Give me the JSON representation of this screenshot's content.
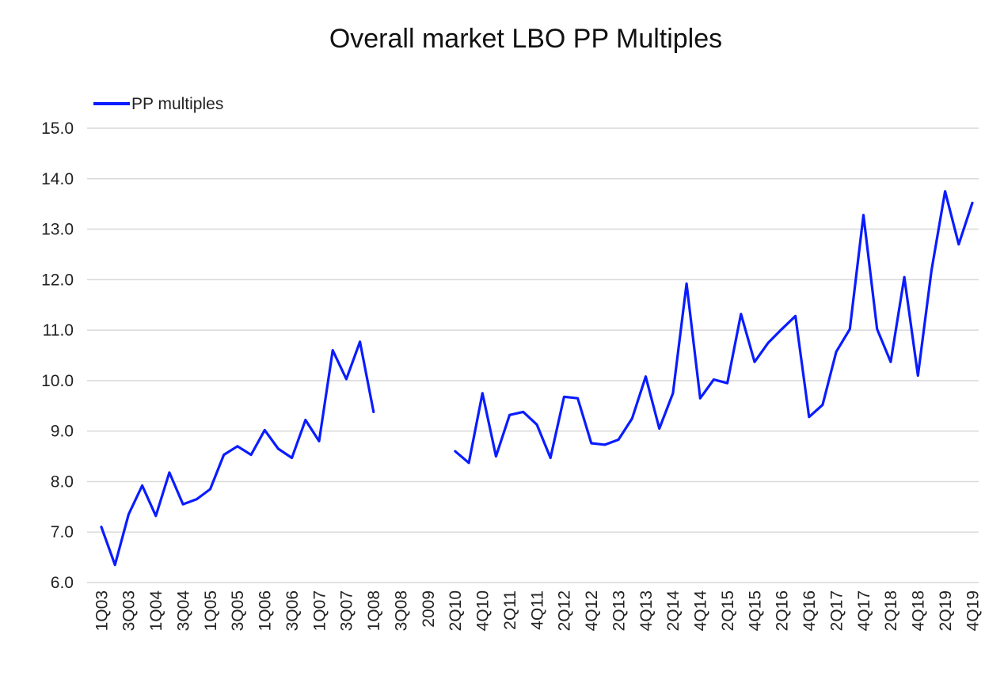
{
  "chart_data": {
    "type": "line",
    "title": "Overall market LBO PP Multiples",
    "legend_position": "top-left",
    "grid": true,
    "ylim": [
      6.0,
      15.0
    ],
    "yticks": [
      "6.0",
      "7.0",
      "8.0",
      "9.0",
      "10.0",
      "11.0",
      "12.0",
      "13.0",
      "14.0",
      "15.0"
    ],
    "ytick_values": [
      6,
      7,
      8,
      9,
      10,
      11,
      12,
      13,
      14,
      15
    ],
    "categories": [
      "1Q03",
      "2Q03",
      "3Q03",
      "4Q03",
      "1Q04",
      "2Q04",
      "3Q04",
      "4Q04",
      "1Q05",
      "2Q05",
      "3Q05",
      "4Q05",
      "1Q06",
      "2Q06",
      "3Q06",
      "4Q06",
      "1Q07",
      "2Q07",
      "3Q07",
      "4Q07",
      "1Q08",
      "2Q08",
      "3Q08",
      "4Q08",
      "2009",
      "1Q10",
      "2Q10",
      "3Q10",
      "4Q10",
      "1Q11",
      "2Q11",
      "3Q11",
      "4Q11",
      "1Q12",
      "2Q12",
      "3Q12",
      "4Q12",
      "1Q13",
      "2Q13",
      "3Q13",
      "4Q13",
      "1Q14",
      "2Q14",
      "3Q14",
      "4Q14",
      "1Q15",
      "2Q15",
      "3Q15",
      "4Q15",
      "1Q16",
      "2Q16",
      "3Q16",
      "4Q16",
      "1Q17",
      "2Q17",
      "3Q17",
      "4Q17",
      "1Q18",
      "2Q18",
      "3Q18",
      "4Q18",
      "1Q19",
      "2Q19",
      "3Q19",
      "4Q19"
    ],
    "xtick_labels": [
      "1Q03",
      "",
      "3Q03",
      "",
      "1Q04",
      "",
      "3Q04",
      "",
      "1Q05",
      "",
      "3Q05",
      "",
      "1Q06",
      "",
      "3Q06",
      "",
      "1Q07",
      "",
      "3Q07",
      "",
      "1Q08",
      "",
      "3Q08",
      "",
      "2009",
      "",
      "2Q10",
      "",
      "4Q10",
      "",
      "2Q11",
      "",
      "4Q11",
      "",
      "2Q12",
      "",
      "4Q12",
      "",
      "2Q13",
      "",
      "4Q13",
      "",
      "2Q14",
      "",
      "4Q14",
      "",
      "2Q15",
      "",
      "4Q15",
      "",
      "2Q16",
      "",
      "4Q16",
      "",
      "2Q17",
      "",
      "4Q17",
      "",
      "2Q18",
      "",
      "4Q18",
      "",
      "2Q19",
      "",
      "4Q19"
    ],
    "series": [
      {
        "name": "PP multiples",
        "color": "#0a1cff",
        "values": [
          7.1,
          6.35,
          7.35,
          7.92,
          7.32,
          8.18,
          7.55,
          7.65,
          7.85,
          8.53,
          8.7,
          8.53,
          9.02,
          8.65,
          8.47,
          9.22,
          8.8,
          10.6,
          10.03,
          10.77,
          9.38,
          null,
          null,
          null,
          null,
          null,
          8.6,
          8.37,
          9.75,
          8.5,
          9.32,
          9.38,
          9.13,
          8.47,
          9.68,
          9.65,
          8.76,
          8.73,
          8.83,
          9.25,
          10.08,
          9.05,
          9.75,
          11.92,
          9.65,
          10.02,
          9.95,
          11.32,
          10.37,
          10.75,
          11.02,
          11.28,
          9.28,
          9.52,
          10.57,
          11.02,
          13.28,
          11.02,
          10.37,
          12.05,
          10.1,
          12.18,
          13.75,
          12.7,
          13.52
        ]
      }
    ]
  }
}
